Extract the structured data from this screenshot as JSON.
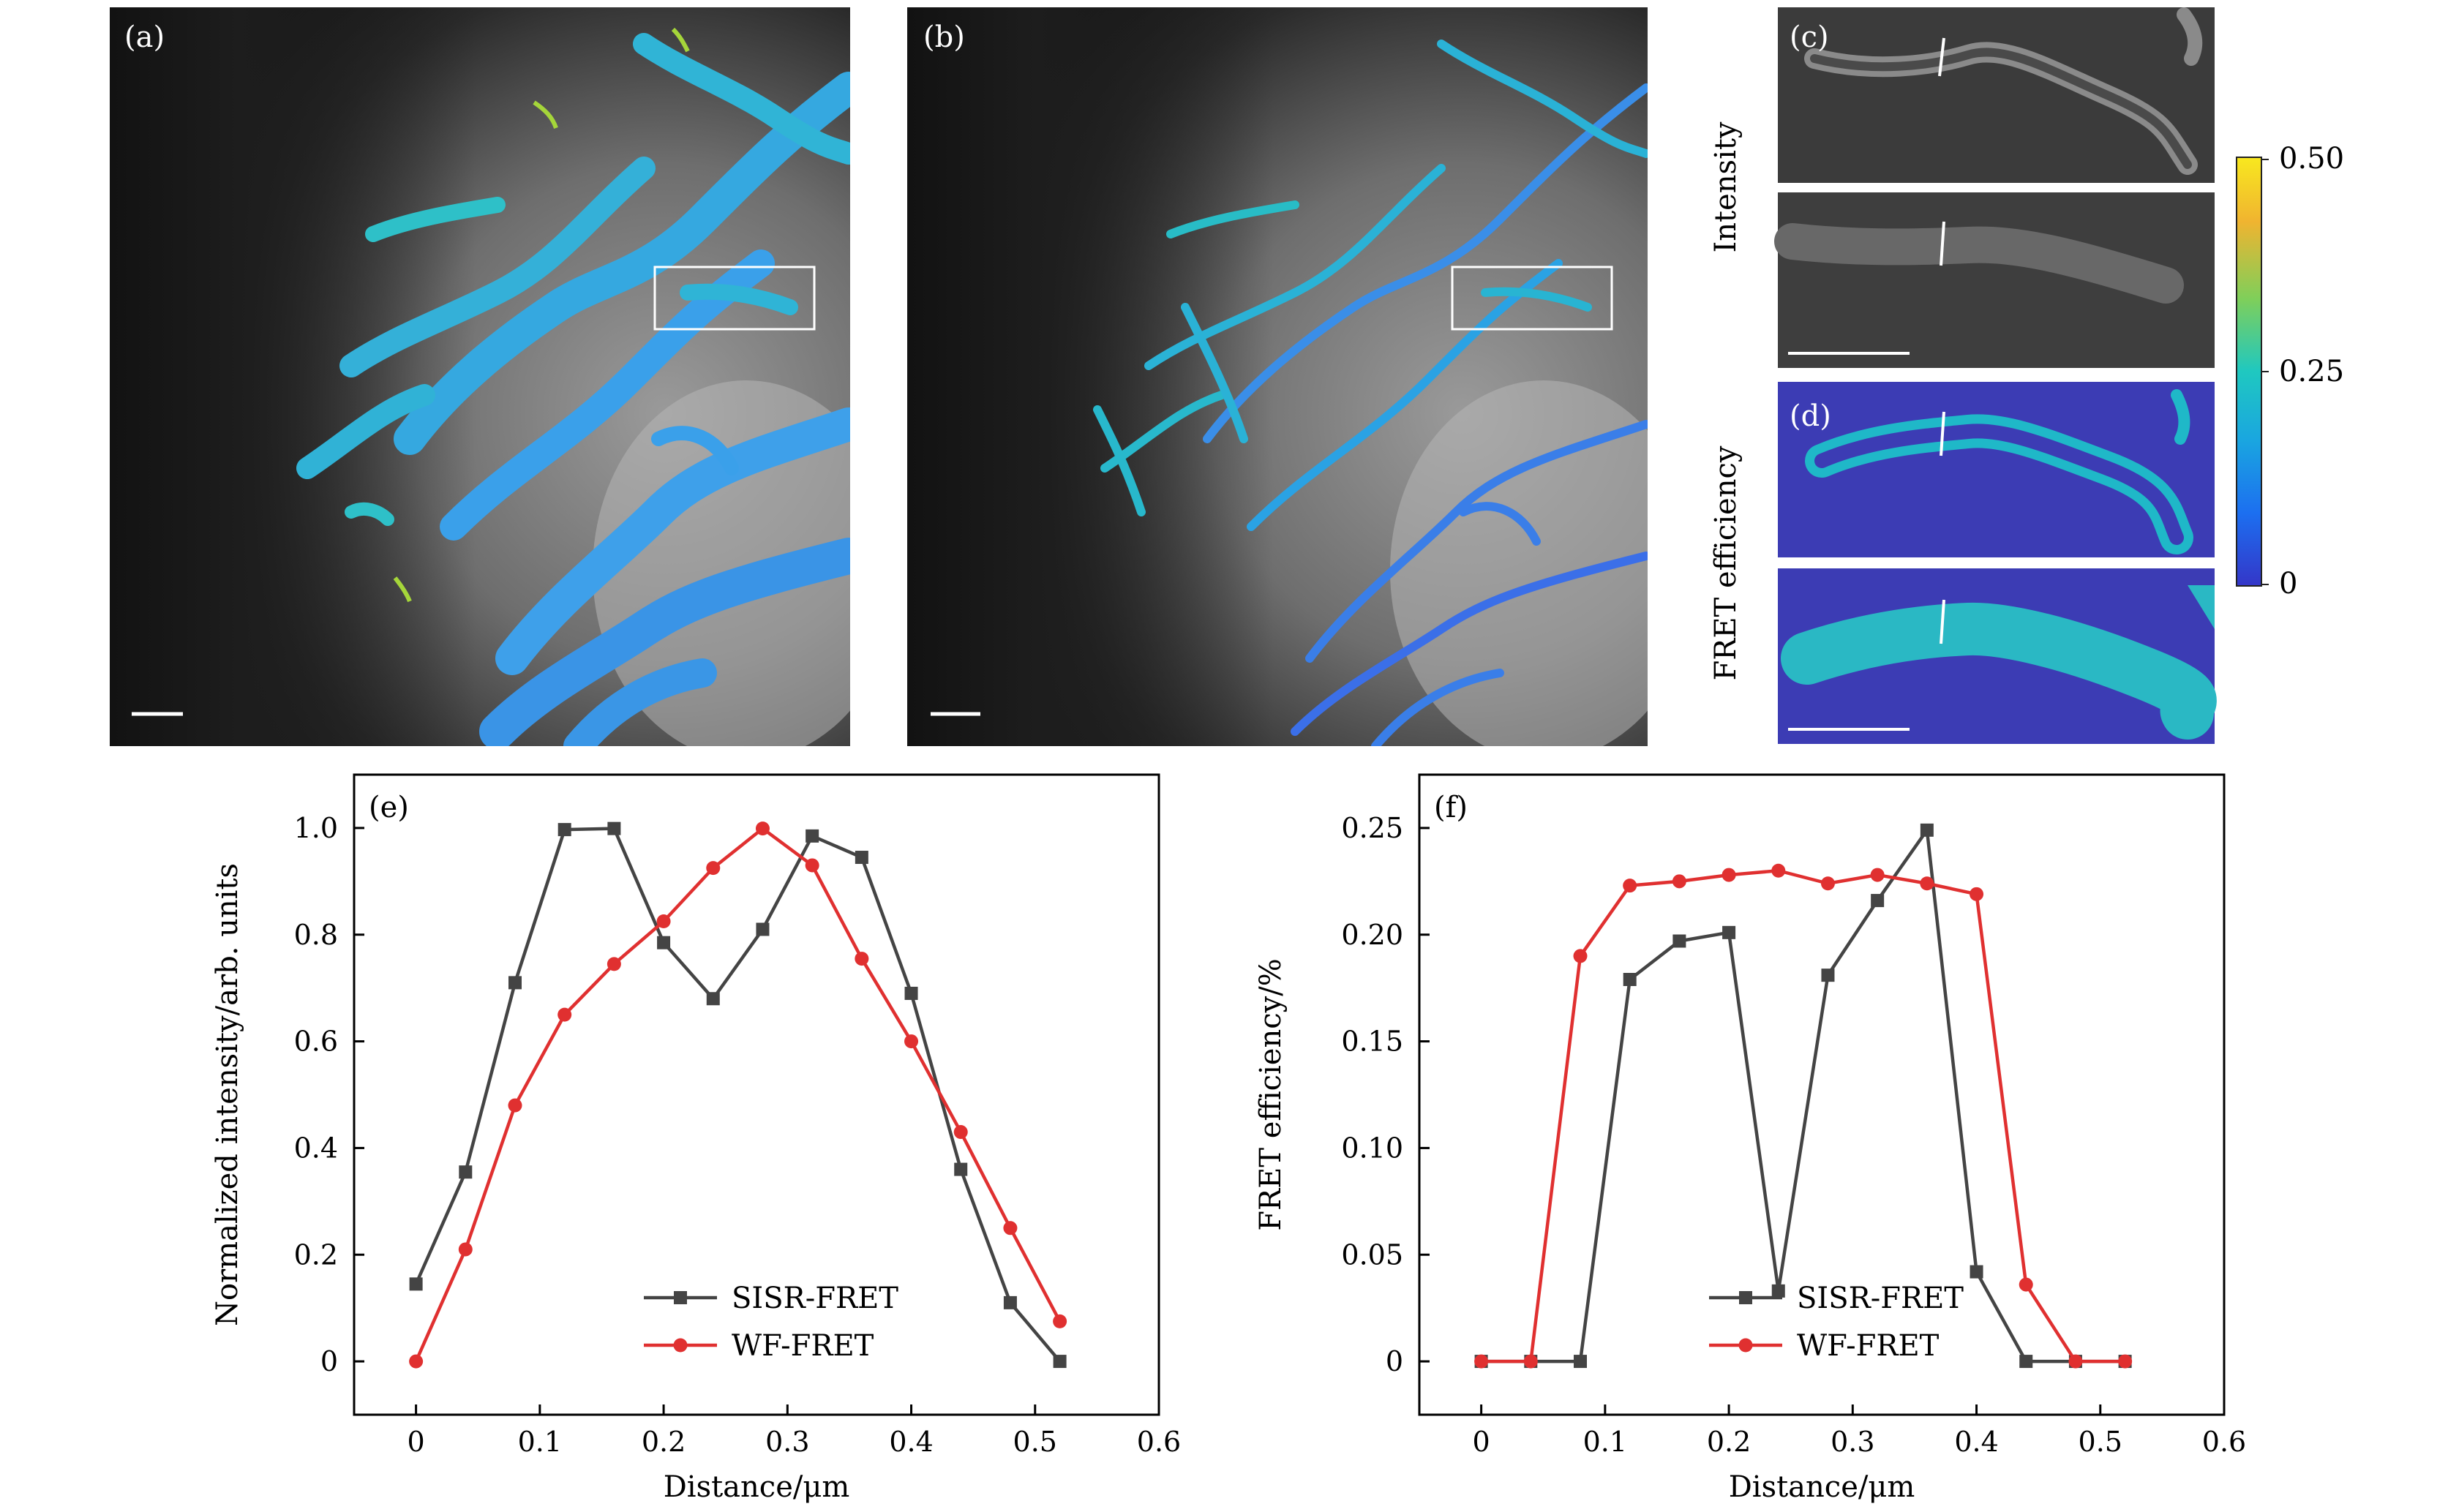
{
  "panels": {
    "a": {
      "label": "(a)"
    },
    "b": {
      "label": "(b)"
    },
    "c": {
      "label": "(c)"
    },
    "d": {
      "label": "(d)"
    }
  },
  "side_labels": {
    "intensity": "Intensity",
    "fret": "FRET efficiency"
  },
  "colorbar": {
    "ticks": [
      "0.50",
      "0.25",
      "0"
    ],
    "colors": [
      "#f8e81f",
      "#f0b430",
      "#7fcf5a",
      "#1fc8c0",
      "#1aa6e0",
      "#1c6ff0",
      "#3436c8"
    ]
  },
  "chart_data": [
    {
      "type": "line",
      "panel": "(e)",
      "xlabel": "Distance/μm",
      "ylabel": "Normalized intensity/arb. units",
      "xlim": [
        -0.05,
        0.6
      ],
      "ylim": [
        -0.1,
        1.1
      ],
      "xticks": [
        "0",
        "0.1",
        "0.2",
        "0.3",
        "0.4",
        "0.5",
        "0.6"
      ],
      "xtick_values": [
        0,
        0.1,
        0.2,
        0.3,
        0.4,
        0.5,
        0.6
      ],
      "yticks": [
        "0",
        "0.2",
        "0.4",
        "0.6",
        "0.8",
        "1.0"
      ],
      "ytick_values": [
        0,
        0.2,
        0.4,
        0.6,
        0.8,
        1.0
      ],
      "legend_position": "bottom-center",
      "x": [
        0,
        0.04,
        0.08,
        0.12,
        0.16,
        0.2,
        0.24,
        0.28,
        0.32,
        0.36,
        0.4,
        0.44,
        0.48,
        0.52
      ],
      "series": [
        {
          "name": "SISR-FRET",
          "color": "#444444",
          "marker": "square",
          "values": [
            0.145,
            0.355,
            0.71,
            0.997,
            0.999,
            0.785,
            0.68,
            0.81,
            0.985,
            0.945,
            0.69,
            0.36,
            0.11,
            0.0
          ]
        },
        {
          "name": "WF-FRET",
          "color": "#e03030",
          "marker": "circle",
          "values": [
            0.0,
            0.21,
            0.48,
            0.65,
            0.745,
            0.825,
            0.925,
            0.999,
            0.93,
            0.755,
            0.6,
            0.43,
            0.25,
            0.075
          ]
        }
      ]
    },
    {
      "type": "line",
      "panel": "(f)",
      "xlabel": "Distance/μm",
      "ylabel": "FRET efficiency/%",
      "xlim": [
        -0.05,
        0.6
      ],
      "ylim": [
        -0.025,
        0.275
      ],
      "xticks": [
        "0",
        "0.1",
        "0.2",
        "0.3",
        "0.4",
        "0.5",
        "0.6"
      ],
      "xtick_values": [
        0,
        0.1,
        0.2,
        0.3,
        0.4,
        0.5,
        0.6
      ],
      "yticks": [
        "0",
        "0.05",
        "0.10",
        "0.15",
        "0.20",
        "0.25"
      ],
      "ytick_values": [
        0,
        0.05,
        0.1,
        0.15,
        0.2,
        0.25
      ],
      "legend_position": "bottom-center",
      "x": [
        0,
        0.04,
        0.08,
        0.12,
        0.16,
        0.2,
        0.24,
        0.28,
        0.32,
        0.36,
        0.4,
        0.44,
        0.48,
        0.52
      ],
      "series": [
        {
          "name": "SISR-FRET",
          "color": "#444444",
          "marker": "square",
          "values": [
            0,
            0,
            0,
            0.179,
            0.197,
            0.201,
            0.033,
            0.181,
            0.216,
            0.249,
            0.042,
            0,
            0,
            0
          ]
        },
        {
          "name": "WF-FRET",
          "color": "#e03030",
          "marker": "circle",
          "values": [
            0,
            0,
            0.19,
            0.223,
            0.225,
            0.228,
            0.23,
            0.224,
            0.228,
            0.224,
            0.219,
            0.036,
            0,
            0
          ]
        }
      ]
    }
  ]
}
